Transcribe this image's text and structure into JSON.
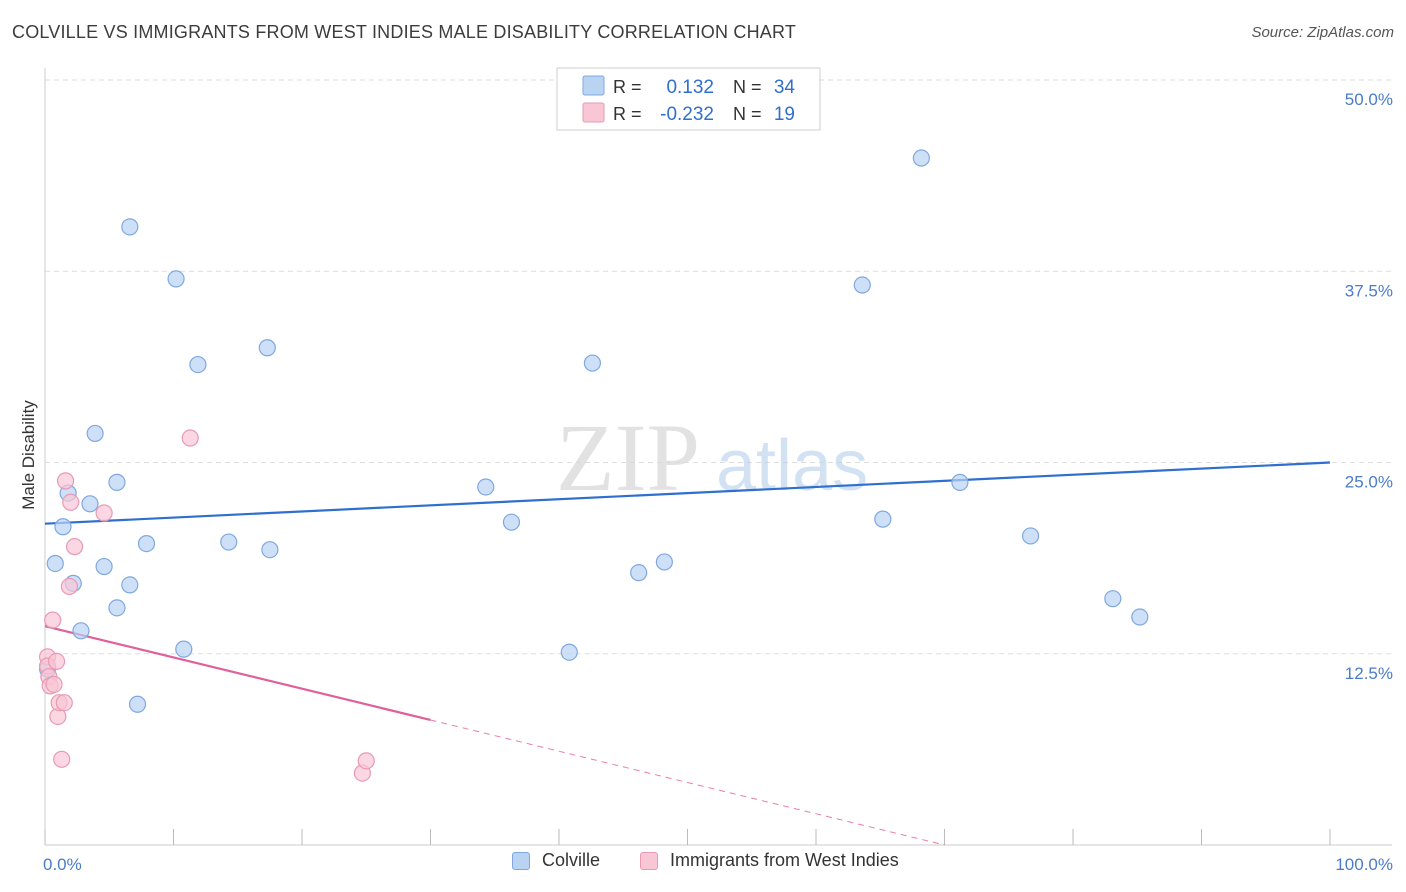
{
  "header": {
    "title": "COLVILLE VS IMMIGRANTS FROM WEST INDIES MALE DISABILITY CORRELATION CHART",
    "source": "Source: ZipAtlas.com"
  },
  "watermark": {
    "zip": "ZIP",
    "atlas": "atlas"
  },
  "legend": {
    "rows": [
      {
        "r_label": "R =",
        "r_value": "0.132",
        "n_label": "N =",
        "n_value": "34"
      },
      {
        "r_label": "R =",
        "r_value": "-0.232",
        "n_label": "N =",
        "n_value": "19"
      }
    ]
  },
  "bottom_legend": {
    "items": [
      {
        "label": "Colville"
      },
      {
        "label": "Immigrants from West Indies"
      }
    ]
  },
  "colors": {
    "blue_fill": "#b9d3f3",
    "blue_stroke": "#7fa8e0",
    "blue_line": "#2e6fcf",
    "pink_fill": "#f8c6d5",
    "pink_stroke": "#e99ab3",
    "pink_line": "#e0609a",
    "tick_text": "#4a7cc9",
    "grid": "#dddddd"
  },
  "chart_data": {
    "type": "scatter",
    "title": "COLVILLE VS IMMIGRANTS FROM WEST INDIES MALE DISABILITY CORRELATION CHART",
    "xlabel": "",
    "ylabel": "Male Disability",
    "xlim": [
      0,
      100
    ],
    "ylim": [
      0,
      50
    ],
    "x_tick_labels": [
      "0.0%",
      "100.0%"
    ],
    "y_ticks": [
      {
        "value": 12.5,
        "label": "12.5%"
      },
      {
        "value": 25.0,
        "label": "25.0%"
      },
      {
        "value": 37.5,
        "label": "37.5%"
      },
      {
        "value": 50.0,
        "label": "50.0%"
      }
    ],
    "series": [
      {
        "name": "Colville",
        "r": 0.132,
        "n": 34,
        "trend": {
          "x0": 0,
          "y0": 21.0,
          "x1": 100,
          "y1": 25.0,
          "dashed_from": null
        },
        "points": [
          {
            "x": 0.2,
            "y": 11.5
          },
          {
            "x": 0.8,
            "y": 18.4
          },
          {
            "x": 1.4,
            "y": 20.8
          },
          {
            "x": 1.8,
            "y": 23.0
          },
          {
            "x": 2.2,
            "y": 17.1
          },
          {
            "x": 2.8,
            "y": 14.0
          },
          {
            "x": 3.5,
            "y": 22.3
          },
          {
            "x": 3.9,
            "y": 26.9
          },
          {
            "x": 4.6,
            "y": 18.2
          },
          {
            "x": 5.6,
            "y": 15.5
          },
          {
            "x": 5.6,
            "y": 23.7
          },
          {
            "x": 6.6,
            "y": 40.4
          },
          {
            "x": 6.6,
            "y": 17.0
          },
          {
            "x": 7.2,
            "y": 9.2
          },
          {
            "x": 7.9,
            "y": 19.7
          },
          {
            "x": 10.2,
            "y": 37.0
          },
          {
            "x": 10.8,
            "y": 12.8
          },
          {
            "x": 11.9,
            "y": 31.4
          },
          {
            "x": 14.3,
            "y": 19.8
          },
          {
            "x": 17.3,
            "y": 32.5
          },
          {
            "x": 17.5,
            "y": 19.3
          },
          {
            "x": 34.3,
            "y": 23.4
          },
          {
            "x": 36.3,
            "y": 21.1
          },
          {
            "x": 40.8,
            "y": 12.6
          },
          {
            "x": 42.6,
            "y": 31.5
          },
          {
            "x": 46.2,
            "y": 17.8
          },
          {
            "x": 48.2,
            "y": 18.5
          },
          {
            "x": 63.6,
            "y": 36.6
          },
          {
            "x": 65.2,
            "y": 21.3
          },
          {
            "x": 68.2,
            "y": 44.9
          },
          {
            "x": 71.2,
            "y": 23.7
          },
          {
            "x": 76.7,
            "y": 20.2
          },
          {
            "x": 83.1,
            "y": 16.1
          },
          {
            "x": 85.2,
            "y": 14.9
          }
        ]
      },
      {
        "name": "Immigrants from West Indies",
        "r": -0.232,
        "n": 19,
        "trend": {
          "x0": 0,
          "y0": 14.3,
          "x1": 70,
          "y1": 0.0,
          "dashed_from": 30
        },
        "points": [
          {
            "x": 0.2,
            "y": 12.3
          },
          {
            "x": 0.2,
            "y": 11.7
          },
          {
            "x": 0.3,
            "y": 11.0
          },
          {
            "x": 0.4,
            "y": 10.4
          },
          {
            "x": 0.6,
            "y": 14.7
          },
          {
            "x": 0.7,
            "y": 10.5
          },
          {
            "x": 0.9,
            "y": 12.0
          },
          {
            "x": 1.0,
            "y": 8.4
          },
          {
            "x": 1.1,
            "y": 9.3
          },
          {
            "x": 1.3,
            "y": 5.6
          },
          {
            "x": 1.5,
            "y": 9.3
          },
          {
            "x": 1.6,
            "y": 23.8
          },
          {
            "x": 1.9,
            "y": 16.9
          },
          {
            "x": 2.0,
            "y": 22.4
          },
          {
            "x": 2.3,
            "y": 19.5
          },
          {
            "x": 4.6,
            "y": 21.7
          },
          {
            "x": 11.3,
            "y": 26.6
          },
          {
            "x": 24.7,
            "y": 4.7
          },
          {
            "x": 25.0,
            "y": 5.5
          }
        ]
      }
    ]
  }
}
